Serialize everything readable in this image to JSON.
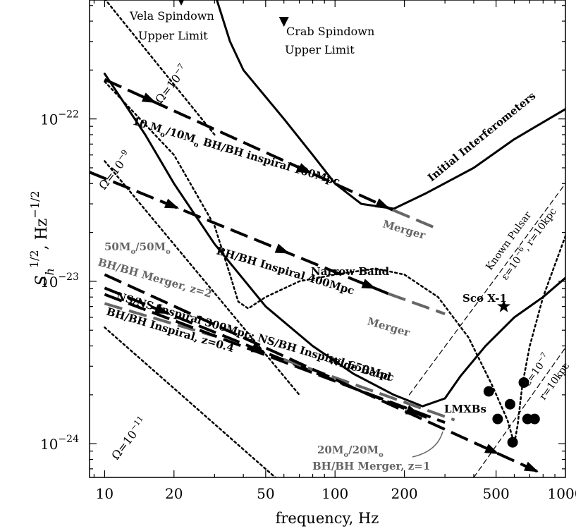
{
  "chart_data": {
    "type": "line",
    "title": "",
    "xlabel": "frequency, Hz",
    "ylabel": "S_h^{1/2}, Hz^{-1/2}",
    "xscale": "log",
    "yscale": "log",
    "xlim": [
      8.6,
      1000
    ],
    "ylim": [
      6.2e-25,
      5.4e-22
    ],
    "x_ticks": [
      {
        "value": 10,
        "label": "10"
      },
      {
        "value": 20,
        "label": "20"
      },
      {
        "value": 50,
        "label": "50"
      },
      {
        "value": 100,
        "label": "100"
      },
      {
        "value": 200,
        "label": "200"
      },
      {
        "value": 500,
        "label": "500"
      },
      {
        "value": 1000,
        "label": "1000"
      }
    ],
    "y_ticks": [
      {
        "value": 1e-22,
        "mant": "10",
        "exp": "−22"
      },
      {
        "value": 1e-23,
        "mant": "10",
        "exp": "−23"
      },
      {
        "value": 1e-24,
        "mant": "10",
        "exp": "−24"
      }
    ],
    "y_label_parts": {
      "base": "S",
      "sub": "h",
      "pow": "1/2",
      "unit": ", Hz",
      "unit_pow": "−1/2"
    },
    "curves": [
      {
        "name": "Initial Interferometers",
        "style": "solid",
        "points": [
          [
            30,
            6e-22
          ],
          [
            35,
            3e-22
          ],
          [
            40,
            2e-22
          ],
          [
            60,
            1e-22
          ],
          [
            80,
            6e-23
          ],
          [
            100,
            4e-23
          ],
          [
            130,
            3e-23
          ],
          [
            180,
            2.8e-23
          ],
          [
            250,
            3.5e-23
          ],
          [
            400,
            5e-23
          ],
          [
            600,
            7.5e-23
          ],
          [
            1000,
            1.15e-22
          ]
        ]
      },
      {
        "name": "Wide Band",
        "style": "solid",
        "points": [
          [
            10,
            1.9e-22
          ],
          [
            15,
            8e-23
          ],
          [
            20,
            4e-23
          ],
          [
            30,
            1.7e-23
          ],
          [
            50,
            7e-24
          ],
          [
            80,
            4e-24
          ],
          [
            120,
            2.7e-24
          ],
          [
            180,
            2e-24
          ],
          [
            240,
            1.7e-24
          ],
          [
            300,
            1.9e-24
          ],
          [
            350,
            2.6e-24
          ],
          [
            450,
            4e-24
          ],
          [
            600,
            6e-24
          ],
          [
            800,
            8e-24
          ],
          [
            1000,
            1.05e-23
          ]
        ]
      },
      {
        "name": "Narrow Band",
        "style": "dotted",
        "points": [
          [
            10,
            1.7e-22
          ],
          [
            20,
            6e-23
          ],
          [
            30,
            2.2e-23
          ],
          [
            35,
            1.1e-23
          ],
          [
            38,
            7.5e-24
          ],
          [
            42,
            6.8e-24
          ],
          [
            50,
            8e-24
          ],
          [
            70,
            1e-23
          ],
          [
            100,
            1.1e-23
          ],
          [
            150,
            1.2e-23
          ],
          [
            200,
            1.1e-23
          ],
          [
            280,
            8e-24
          ],
          [
            380,
            4.5e-24
          ],
          [
            480,
            2.3e-24
          ],
          [
            560,
            1.4e-24
          ],
          [
            600,
            1e-24
          ],
          [
            620,
            1.3e-24
          ],
          [
            650,
            2.3e-24
          ],
          [
            700,
            4e-24
          ],
          [
            800,
            8e-24
          ],
          [
            1000,
            1.9e-23
          ]
        ]
      },
      {
        "name": "Omega 1e-7",
        "style": "dotted",
        "points": [
          [
            10,
            5.5e-22
          ],
          [
            30,
            8e-23
          ]
        ]
      },
      {
        "name": "Omega 1e-9",
        "style": "dotted",
        "points": [
          [
            10,
            5.5e-23
          ],
          [
            70,
            2e-24
          ]
        ]
      },
      {
        "name": "Omega 1e-11",
        "style": "dotted",
        "points": [
          [
            10,
            5.2e-24
          ],
          [
            55,
            6.2e-25
          ]
        ]
      },
      {
        "name": "Known Pulsar eps=1e-6",
        "style": "thin-dashed",
        "points": [
          [
            210,
            2e-24
          ],
          [
            1000,
            4e-23
          ]
        ]
      },
      {
        "name": "Known Pulsar eps=1e-7",
        "style": "thin-dashed",
        "points": [
          [
            400,
            6.2e-25
          ],
          [
            1000,
            3.9e-24
          ]
        ]
      }
    ],
    "tracks": [
      {
        "name": "10 Mo/10Mo BH/BH inspiral 100Mpc",
        "color": "#000000",
        "points": [
          [
            10,
            1.75e-22
          ],
          [
            178,
            2.75e-23
          ]
        ],
        "arrows": [
          0.18,
          0.72,
          0.99
        ]
      },
      {
        "name": "10 Mo/10Mo Merger",
        "color": "#666666",
        "points": [
          [
            178,
            2.75e-23
          ],
          [
            280,
            2.1e-23
          ]
        ],
        "arrows": []
      },
      {
        "name": "BH/BH Inspiral 400Mpc",
        "color": "#000000",
        "points": [
          [
            8.6,
            4.7e-23
          ],
          [
            170,
            8.4e-24
          ]
        ],
        "arrows": [
          0.3,
          0.67,
          0.96
        ]
      },
      {
        "name": "BH/BH 400Mpc Merger",
        "color": "#666666",
        "points": [
          [
            170,
            8.4e-24
          ],
          [
            300,
            6.3e-24
          ]
        ],
        "arrows": []
      },
      {
        "name": "50Mo/50Mo BH/BH Merger z=2",
        "color": "#666666",
        "points": [
          [
            10,
            7.3e-24
          ],
          [
            30,
            4.6e-24
          ]
        ],
        "arrows": []
      },
      {
        "name": "NS/NS Inspiral 300Mpc",
        "color": "#000000",
        "points": [
          [
            10,
            9.1e-24
          ],
          [
            250,
            1.45e-24
          ]
        ],
        "arrows": [
          0.2,
          0.5,
          0.98
        ]
      },
      {
        "name": "BH/BH Inspiral z=0.4",
        "color": "#000000",
        "points": [
          [
            10,
            8.3e-24
          ],
          [
            300,
            1.35e-24
          ]
        ],
        "arrows": []
      },
      {
        "name": "BH/BH Merger z=0.4 band",
        "color": "#666666",
        "points": [
          [
            60,
            3.3e-24
          ],
          [
            330,
            1.4e-24
          ]
        ],
        "arrows": []
      },
      {
        "name": "NS/BH Inspiral 650Mpc",
        "color": "#000000",
        "points": [
          [
            10,
            1.1e-23
          ],
          [
            800,
            6.5e-25
          ]
        ],
        "arrows": [
          0.9,
          0.99
        ]
      }
    ],
    "points": [
      {
        "name": "Sco X-1",
        "marker": "star",
        "x": 540,
        "y": 7e-24
      },
      {
        "name": "Vela Spindown Upper Limit",
        "marker": "triangle",
        "x": 21.5,
        "y": 5.4e-22
      },
      {
        "name": "Crab Spindown Upper Limit",
        "marker": "triangle",
        "x": 60,
        "y": 4e-22
      },
      {
        "name": "LMXB",
        "marker": "circle",
        "x": 465,
        "y": 2.1e-24
      },
      {
        "name": "LMXB",
        "marker": "circle",
        "x": 508,
        "y": 1.42e-24
      },
      {
        "name": "LMXB",
        "marker": "circle",
        "x": 575,
        "y": 1.75e-24
      },
      {
        "name": "LMXB",
        "marker": "circle",
        "x": 590,
        "y": 1.02e-24
      },
      {
        "name": "LMXB",
        "marker": "circle",
        "x": 660,
        "y": 2.38e-24
      },
      {
        "name": "LMXB",
        "marker": "circle",
        "x": 685,
        "y": 1.42e-24
      },
      {
        "name": "LMXB",
        "marker": "circle",
        "x": 735,
        "y": 1.42e-24
      }
    ],
    "annotations": {
      "vela_1": "Vela Spindown",
      "vela_2": "Upper Limit",
      "crab_1": "Crab Spindown",
      "crab_2": "Upper Limit",
      "omega7": "Ω=10",
      "omega7_exp": "−7",
      "omega9": "Ω=10",
      "omega9_exp": "−9",
      "omega11": "Ω=10",
      "omega11_exp": "−11",
      "bh100_a": "10 M",
      "bh100_b": "o",
      "bh100_c": "/10M",
      "bh100_d": "o",
      "bh100_e": " BH/BH inspiral 100Mpc",
      "merger1": "Merger",
      "initial": "Initial Interferometers",
      "known_pulsar": "Known Pulsar",
      "eps6_a": "ε=10",
      "eps6_exp": "−6",
      "eps6_b": ", r=10kpc",
      "bh400": "BH/BH Inspiral 400Mpc",
      "merger2": "Merger",
      "narrow": "Narrow Band",
      "sco": "Sco X-1",
      "m50_a": "50M",
      "m50_b": "o",
      "m50_c": "/50M",
      "m50_d": "o",
      "m50_2": "BH/BH Merger, z=2",
      "nsns": "NS/NS Inspiral 300Mpc; NS/BH Inspiral 650Mpc",
      "bhz": "BH/BH Inspiral, z=0.4",
      "wide": "Wide Band",
      "lmxb": "LMXBs",
      "eps7_a": "ε=10",
      "eps7_exp": "−7",
      "eps7_b": "r=10kpc",
      "m20_a": "20M",
      "m20_b": "o",
      "m20_c": "/20M",
      "m20_d": "o",
      "m20_2": "BH/BH Merger, z=1"
    }
  }
}
